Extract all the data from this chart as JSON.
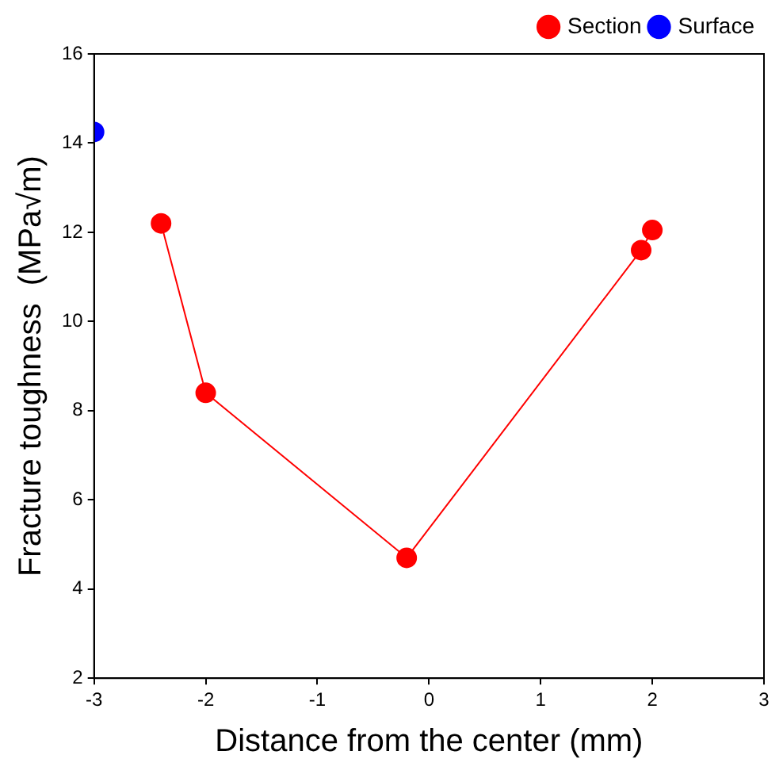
{
  "chart_data": {
    "type": "line",
    "xlabel": "Distance from the center (mm)",
    "ylabel": "Fracture toughness  (MPa√m)",
    "xlim": [
      -3,
      3
    ],
    "xticks": [
      -3,
      -2,
      -1,
      0,
      1,
      2,
      3
    ],
    "ylim": [
      2,
      16
    ],
    "yticks": [
      2,
      4,
      6,
      8,
      10,
      12,
      14,
      16
    ],
    "grid": false,
    "legend": "top right",
    "marker": "circle",
    "line_style": "solid",
    "series": [
      {
        "name": "Section",
        "color": "#ff0000",
        "x": [
          -2.4,
          -2,
          -0.2,
          1.9,
          2
        ],
        "values": [
          12.2,
          8.4,
          4.7,
          11.6,
          12.05
        ]
      },
      {
        "name": "Surface",
        "color": "#0000ff",
        "x": [
          -3
        ],
        "values": [
          14.25
        ]
      }
    ]
  }
}
